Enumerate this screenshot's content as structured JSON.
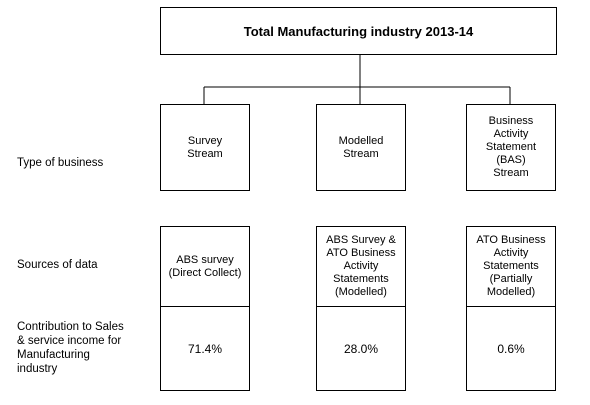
{
  "title": "Total Manufacturing industry 2013-14",
  "row_labels": {
    "type": "Type of business",
    "sources": "Sources of data",
    "contribution": "Contribution to Sales\n& service income for\nManufacturing\nindustry"
  },
  "streams": [
    {
      "type": "Survey\nStream",
      "source": "ABS survey\n(Direct Collect)",
      "contribution": "71.4%"
    },
    {
      "type": "Modelled\nStream",
      "source": "ABS Survey &\nATO Business\nActivity\nStatements\n(Modelled)",
      "contribution": "28.0%"
    },
    {
      "type": "Business\nActivity\nStatement\n(BAS)\nStream",
      "source": "ATO Business\nActivity\nStatements\n(Partially\nModelled)",
      "contribution": "0.6%"
    }
  ]
}
